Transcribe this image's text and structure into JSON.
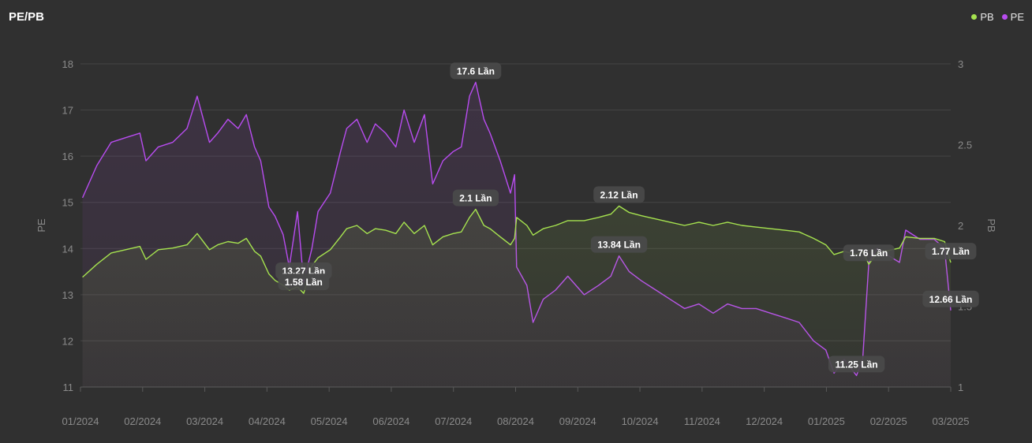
{
  "header": {
    "title": "PE/PB"
  },
  "legend": [
    {
      "label": "PB",
      "color": "#a6e34f"
    },
    {
      "label": "PE",
      "color": "#b84cf0"
    }
  ],
  "chart_data": {
    "type": "line",
    "title": "PE/PB",
    "x_ticks": [
      "01/2024",
      "02/2024",
      "03/2024",
      "04/2024",
      "05/2024",
      "06/2024",
      "07/2024",
      "08/2024",
      "09/2024",
      "10/2024",
      "11/2024",
      "12/2024",
      "01/2025",
      "02/2025",
      "03/2025"
    ],
    "y_left": {
      "label": "PE",
      "ticks": [
        11,
        12,
        13,
        14,
        15,
        16,
        17,
        18
      ],
      "range": [
        11,
        18
      ]
    },
    "y_right": {
      "label": "PB",
      "ticks": [
        1,
        1.5,
        2,
        2.5,
        3
      ],
      "range": [
        1,
        3
      ]
    },
    "grid": true,
    "legend_position": "top-right",
    "series": [
      {
        "name": "PE",
        "axis": "left",
        "color": "#b84cf0",
        "points": [
          [
            "2024-01-02",
            15.1
          ],
          [
            "2024-01-09",
            15.8
          ],
          [
            "2024-01-16",
            16.3
          ],
          [
            "2024-01-23",
            16.4
          ],
          [
            "2024-01-30",
            16.5
          ],
          [
            "2024-02-02",
            15.9
          ],
          [
            "2024-02-08",
            16.2
          ],
          [
            "2024-02-15",
            16.3
          ],
          [
            "2024-02-22",
            16.6
          ],
          [
            "2024-02-27",
            17.3
          ],
          [
            "2024-03-04",
            16.3
          ],
          [
            "2024-03-08",
            16.5
          ],
          [
            "2024-03-13",
            16.8
          ],
          [
            "2024-03-18",
            16.6
          ],
          [
            "2024-03-22",
            16.9
          ],
          [
            "2024-03-26",
            16.2
          ],
          [
            "2024-03-29",
            15.9
          ],
          [
            "2024-04-02",
            14.9
          ],
          [
            "2024-04-05",
            14.7
          ],
          [
            "2024-04-09",
            14.3
          ],
          [
            "2024-04-12",
            13.6
          ],
          [
            "2024-04-16",
            14.8
          ],
          [
            "2024-04-19",
            13.27
          ],
          [
            "2024-04-23",
            14.0
          ],
          [
            "2024-04-26",
            14.8
          ],
          [
            "2024-05-02",
            15.2
          ],
          [
            "2024-05-07",
            16.1
          ],
          [
            "2024-05-10",
            16.6
          ],
          [
            "2024-05-15",
            16.8
          ],
          [
            "2024-05-20",
            16.3
          ],
          [
            "2024-05-24",
            16.7
          ],
          [
            "2024-05-29",
            16.5
          ],
          [
            "2024-06-03",
            16.2
          ],
          [
            "2024-06-07",
            17.0
          ],
          [
            "2024-06-12",
            16.3
          ],
          [
            "2024-06-17",
            16.9
          ],
          [
            "2024-06-21",
            15.4
          ],
          [
            "2024-06-26",
            15.9
          ],
          [
            "2024-07-01",
            16.1
          ],
          [
            "2024-07-05",
            16.2
          ],
          [
            "2024-07-09",
            17.3
          ],
          [
            "2024-07-12",
            17.6
          ],
          [
            "2024-07-16",
            16.8
          ],
          [
            "2024-07-19",
            16.5
          ],
          [
            "2024-07-24",
            15.9
          ],
          [
            "2024-07-29",
            15.2
          ],
          [
            "2024-07-31",
            15.6
          ],
          [
            "2024-08-01",
            13.6
          ],
          [
            "2024-08-06",
            13.2
          ],
          [
            "2024-08-09",
            12.4
          ],
          [
            "2024-08-14",
            12.9
          ],
          [
            "2024-08-20",
            13.1
          ],
          [
            "2024-08-26",
            13.4
          ],
          [
            "2024-09-03",
            13.0
          ],
          [
            "2024-09-10",
            13.2
          ],
          [
            "2024-09-16",
            13.4
          ],
          [
            "2024-09-20",
            13.84
          ],
          [
            "2024-09-25",
            13.5
          ],
          [
            "2024-10-01",
            13.3
          ],
          [
            "2024-10-08",
            13.1
          ],
          [
            "2024-10-15",
            12.9
          ],
          [
            "2024-10-22",
            12.7
          ],
          [
            "2024-10-29",
            12.8
          ],
          [
            "2024-11-05",
            12.6
          ],
          [
            "2024-11-12",
            12.8
          ],
          [
            "2024-11-19",
            12.7
          ],
          [
            "2024-11-26",
            12.7
          ],
          [
            "2024-12-03",
            12.6
          ],
          [
            "2024-12-10",
            12.5
          ],
          [
            "2024-12-17",
            12.4
          ],
          [
            "2024-12-24",
            12.0
          ],
          [
            "2024-12-30",
            11.8
          ],
          [
            "2025-01-03",
            11.3
          ],
          [
            "2025-01-08",
            11.6
          ],
          [
            "2025-01-14",
            11.25
          ],
          [
            "2025-01-17",
            11.6
          ],
          [
            "2025-01-20",
            13.7
          ],
          [
            "2025-01-24",
            14.0
          ],
          [
            "2025-02-04",
            13.7
          ],
          [
            "2025-02-07",
            14.4
          ],
          [
            "2025-02-14",
            14.2
          ],
          [
            "2025-02-21",
            14.2
          ],
          [
            "2025-02-26",
            14.0
          ],
          [
            "2025-03-01",
            12.66
          ]
        ]
      },
      {
        "name": "PB",
        "axis": "right",
        "color": "#a6e34f",
        "points": [
          [
            "2024-01-02",
            1.68
          ],
          [
            "2024-01-09",
            1.76
          ],
          [
            "2024-01-16",
            1.83
          ],
          [
            "2024-01-23",
            1.85
          ],
          [
            "2024-01-30",
            1.87
          ],
          [
            "2024-02-02",
            1.79
          ],
          [
            "2024-02-08",
            1.85
          ],
          [
            "2024-02-15",
            1.86
          ],
          [
            "2024-02-22",
            1.88
          ],
          [
            "2024-02-27",
            1.95
          ],
          [
            "2024-03-04",
            1.85
          ],
          [
            "2024-03-08",
            1.88
          ],
          [
            "2024-03-13",
            1.9
          ],
          [
            "2024-03-18",
            1.89
          ],
          [
            "2024-03-22",
            1.92
          ],
          [
            "2024-03-26",
            1.84
          ],
          [
            "2024-03-29",
            1.81
          ],
          [
            "2024-04-02",
            1.7
          ],
          [
            "2024-04-05",
            1.66
          ],
          [
            "2024-04-09",
            1.63
          ],
          [
            "2024-04-12",
            1.6
          ],
          [
            "2024-04-16",
            1.62
          ],
          [
            "2024-04-19",
            1.58
          ],
          [
            "2024-04-23",
            1.75
          ],
          [
            "2024-04-26",
            1.8
          ],
          [
            "2024-05-02",
            1.85
          ],
          [
            "2024-05-07",
            1.93
          ],
          [
            "2024-05-10",
            1.98
          ],
          [
            "2024-05-15",
            2.0
          ],
          [
            "2024-05-20",
            1.95
          ],
          [
            "2024-05-24",
            1.98
          ],
          [
            "2024-05-29",
            1.97
          ],
          [
            "2024-06-03",
            1.95
          ],
          [
            "2024-06-07",
            2.02
          ],
          [
            "2024-06-12",
            1.95
          ],
          [
            "2024-06-17",
            2.0
          ],
          [
            "2024-06-21",
            1.88
          ],
          [
            "2024-06-26",
            1.93
          ],
          [
            "2024-07-01",
            1.95
          ],
          [
            "2024-07-05",
            1.96
          ],
          [
            "2024-07-09",
            2.05
          ],
          [
            "2024-07-12",
            2.1
          ],
          [
            "2024-07-16",
            2.0
          ],
          [
            "2024-07-19",
            1.98
          ],
          [
            "2024-07-24",
            1.93
          ],
          [
            "2024-07-29",
            1.88
          ],
          [
            "2024-07-31",
            1.92
          ],
          [
            "2024-08-01",
            2.05
          ],
          [
            "2024-08-06",
            2.0
          ],
          [
            "2024-08-09",
            1.94
          ],
          [
            "2024-08-14",
            1.98
          ],
          [
            "2024-08-20",
            2.0
          ],
          [
            "2024-08-26",
            2.03
          ],
          [
            "2024-09-03",
            2.03
          ],
          [
            "2024-09-10",
            2.05
          ],
          [
            "2024-09-16",
            2.07
          ],
          [
            "2024-09-20",
            2.12
          ],
          [
            "2024-09-25",
            2.08
          ],
          [
            "2024-10-01",
            2.06
          ],
          [
            "2024-10-08",
            2.04
          ],
          [
            "2024-10-15",
            2.02
          ],
          [
            "2024-10-22",
            2.0
          ],
          [
            "2024-10-29",
            2.02
          ],
          [
            "2024-11-05",
            2.0
          ],
          [
            "2024-11-12",
            2.02
          ],
          [
            "2024-11-19",
            2.0
          ],
          [
            "2024-11-26",
            1.99
          ],
          [
            "2024-12-03",
            1.98
          ],
          [
            "2024-12-10",
            1.97
          ],
          [
            "2024-12-17",
            1.96
          ],
          [
            "2024-12-24",
            1.92
          ],
          [
            "2024-12-30",
            1.88
          ],
          [
            "2025-01-03",
            1.82
          ],
          [
            "2025-01-08",
            1.84
          ],
          [
            "2025-01-14",
            1.82
          ],
          [
            "2025-01-17",
            1.84
          ],
          [
            "2025-01-20",
            1.76
          ],
          [
            "2025-01-24",
            1.83
          ],
          [
            "2025-02-04",
            1.86
          ],
          [
            "2025-02-07",
            1.93
          ],
          [
            "2025-02-14",
            1.92
          ],
          [
            "2025-02-21",
            1.92
          ],
          [
            "2025-02-26",
            1.9
          ],
          [
            "2025-03-01",
            1.77
          ]
        ]
      }
    ],
    "annotations": [
      {
        "text": "17.6 Lần",
        "series": "PE",
        "x": "2024-07-12",
        "y": 17.6
      },
      {
        "text": "13.27 Lần",
        "series": "PE",
        "x": "2024-04-19",
        "y": 13.27
      },
      {
        "text": "13.84 Lần",
        "series": "PE",
        "x": "2024-09-20",
        "y": 13.84
      },
      {
        "text": "11.25 Lần",
        "series": "PE",
        "x": "2025-01-14",
        "y": 11.25
      },
      {
        "text": "12.66 Lần",
        "series": "PE",
        "x": "2025-03-01",
        "y": 12.66
      },
      {
        "text": "2.1 Lần",
        "series": "PB",
        "x": "2024-07-12",
        "y": 2.1
      },
      {
        "text": "1.58 Lần",
        "series": "PB",
        "x": "2024-04-19",
        "y": 1.58
      },
      {
        "text": "2.12 Lần",
        "series": "PB",
        "x": "2024-09-20",
        "y": 2.12
      },
      {
        "text": "1.76 Lần",
        "series": "PB",
        "x": "2025-01-20",
        "y": 1.76
      },
      {
        "text": "1.77 Lần",
        "series": "PB",
        "x": "2025-03-01",
        "y": 1.77
      }
    ]
  }
}
